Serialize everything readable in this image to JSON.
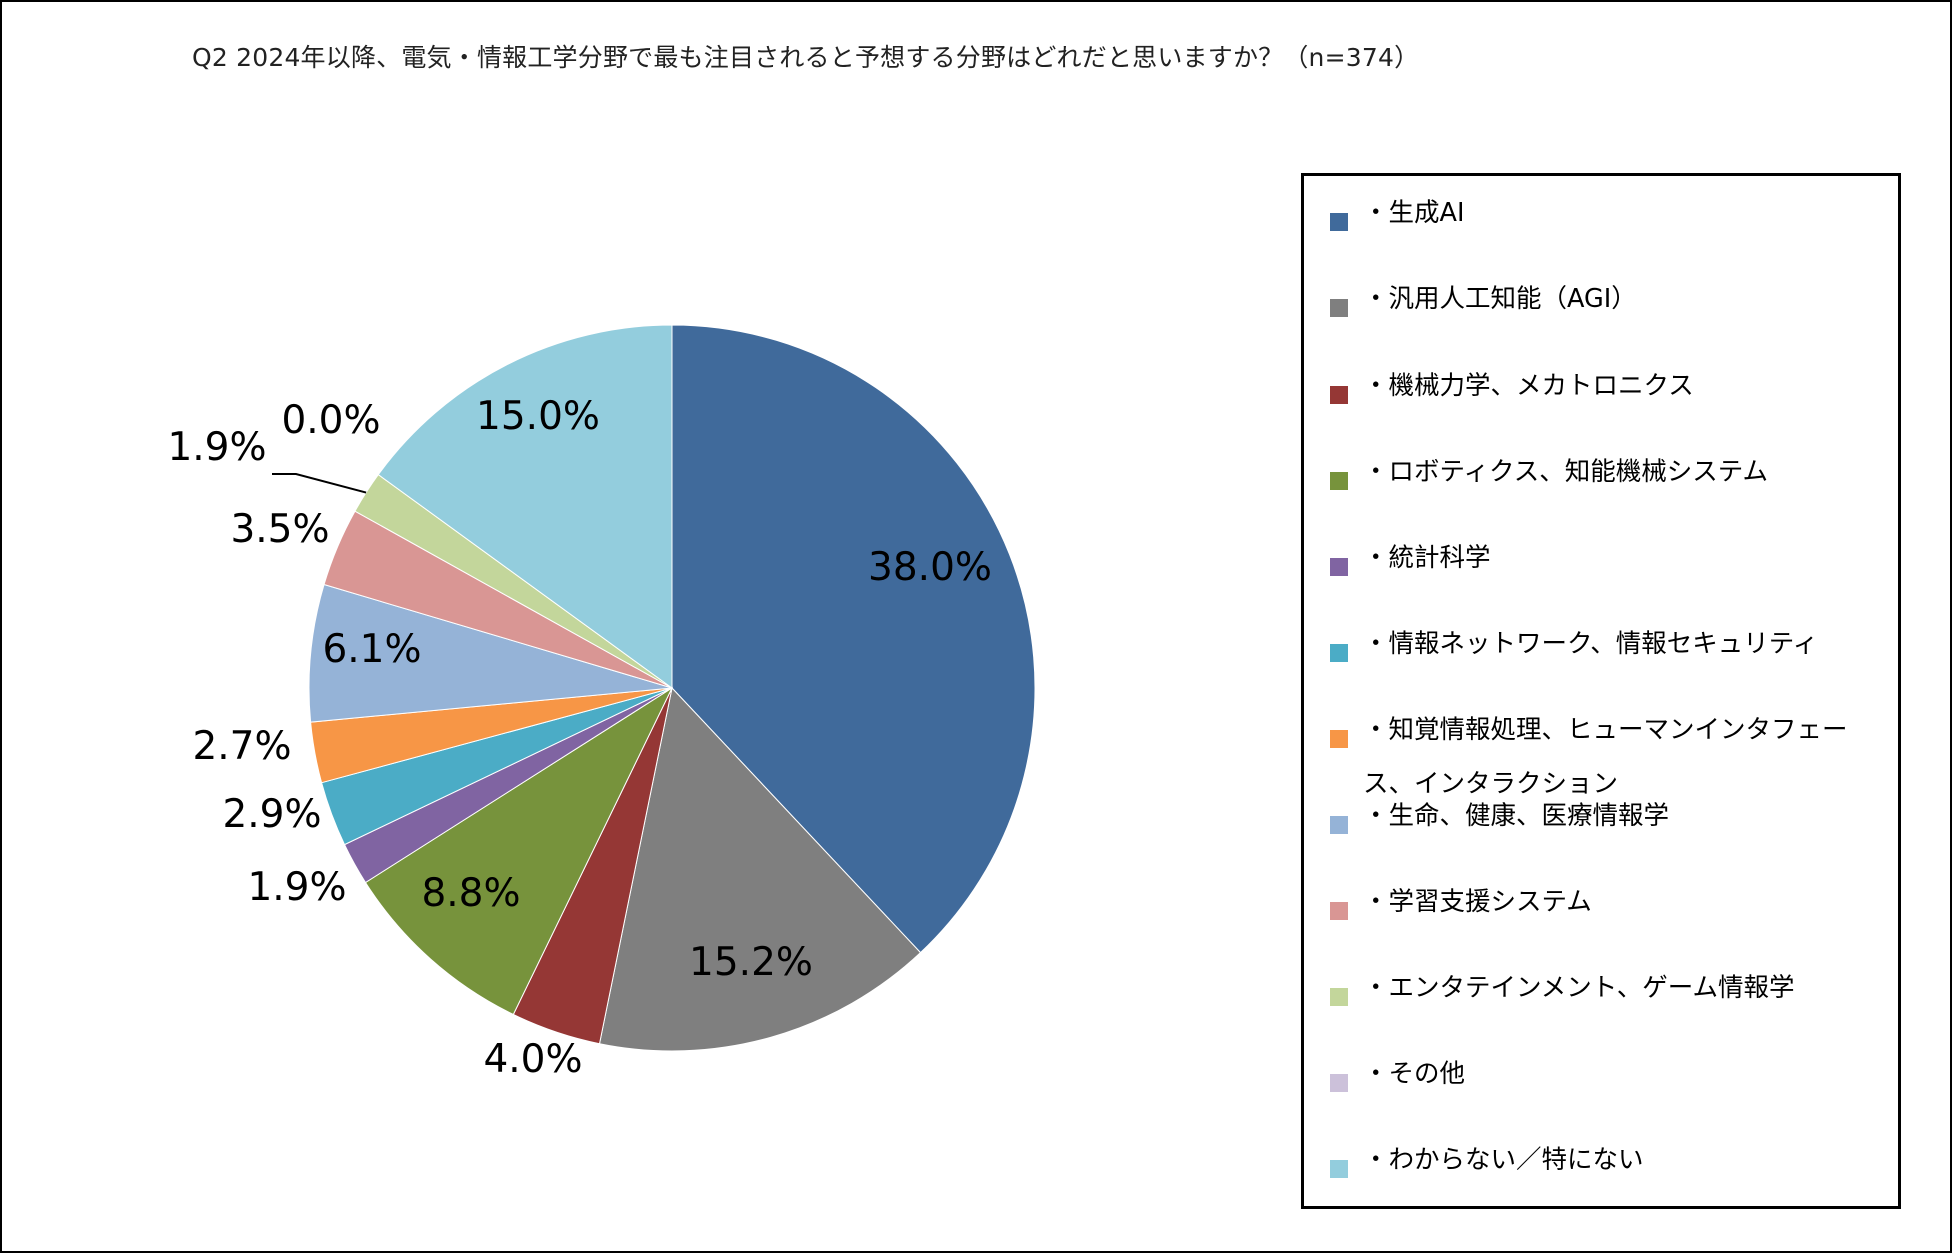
{
  "chart_data": {
    "type": "pie",
    "title": "Q2 2024年以降、電気・情報工学分野で最も注目されると予想する分野はどれだと思いますか？（n=374）",
    "slices": [
      {
        "label": "・生成AI",
        "value": 38.0,
        "value_label": "38.0%",
        "color": "#406a9b"
      },
      {
        "label": "・汎用人工知能（AGI）",
        "value": 15.2,
        "value_label": "15.2%",
        "color": "#7f7f7f"
      },
      {
        "label": "・機械力学、メカトロニクス",
        "value": 4.0,
        "value_label": "4.0%",
        "color": "#953735"
      },
      {
        "label": "・ロボティクス、知能機械システム",
        "value": 8.8,
        "value_label": "8.8%",
        "color": "#77933c"
      },
      {
        "label": "・統計科学",
        "value": 1.9,
        "value_label": "1.9%",
        "color": "#8064a2"
      },
      {
        "label": "・情報ネットワーク、情報セキュリティ",
        "value": 2.9,
        "value_label": "2.9%",
        "color": "#4bacc6"
      },
      {
        "label": "・知覚情報処理、ヒューマンインタフェース、インタラクション",
        "value": 2.7,
        "value_label": "2.7%",
        "color": "#f79646"
      },
      {
        "label": "・生命、健康、医療情報学",
        "value": 6.1,
        "value_label": "6.1%",
        "color": "#95b3d7"
      },
      {
        "label": "・学習支援システム",
        "value": 3.5,
        "value_label": "3.5%",
        "color": "#d99694"
      },
      {
        "label": "・エンタテインメント、ゲーム情報学",
        "value": 1.9,
        "value_label": "1.9%",
        "color": "#c3d69b"
      },
      {
        "label": "・その他",
        "value": 0.0,
        "value_label": "0.0%",
        "color": "#ccc1da"
      },
      {
        "label": "・わからない／特にない",
        "value": 15.0,
        "value_label": "15.0%",
        "color": "#93cddd"
      }
    ],
    "legend_position": "right"
  }
}
